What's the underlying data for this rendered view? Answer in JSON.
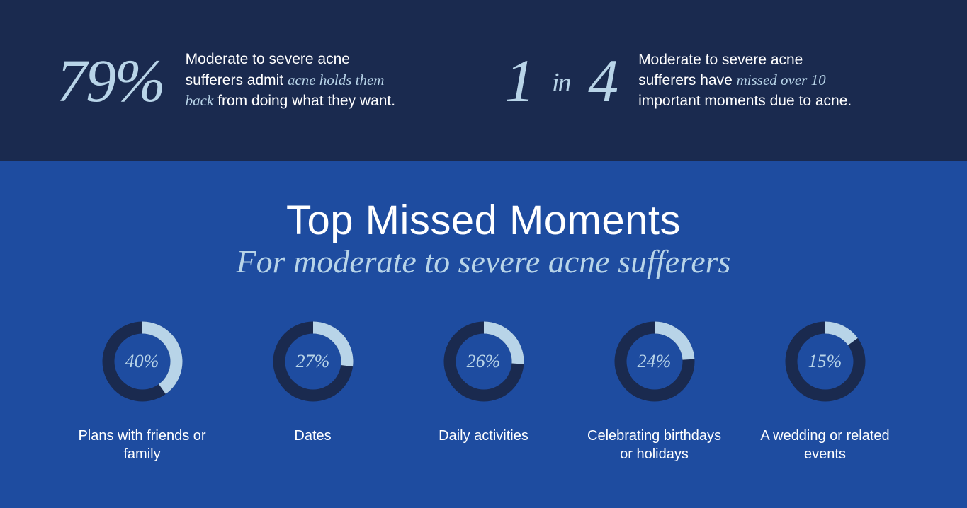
{
  "colors": {
    "top_band_bg": "#1a2a4f",
    "bottom_band_bg": "#1e4ca0",
    "accent_light": "#b8d4e8",
    "donut_track": "#1a2a4f",
    "donut_fill": "#b8d4e8",
    "text_white": "#ffffff"
  },
  "top_stats": [
    {
      "stat_html": "79%",
      "desc_html": "Moderate to severe acne sufferers admit <span class='em'>acne holds them back</span> from doing what they want."
    },
    {
      "stat_html": "1 <span class='in-word'>in</span> 4",
      "desc_html": "Moderate to severe acne sufferers have <span class='em'>missed over 10</span> important moments due to acne."
    }
  ],
  "title": "Top Missed Moments",
  "subtitle": "For moderate to severe acne sufferers",
  "donut_style": {
    "size": 120,
    "stroke_width": 17,
    "radius": 48,
    "track_color": "#1a2a4f",
    "fill_color": "#b8d4e8",
    "pct_fontsize": 26,
    "label_fontsize": 20
  },
  "donuts": [
    {
      "pct": 40,
      "pct_label": "40%",
      "label": "Plans with friends or family"
    },
    {
      "pct": 27,
      "pct_label": "27%",
      "label": "Dates"
    },
    {
      "pct": 26,
      "pct_label": "26%",
      "label": "Daily activities"
    },
    {
      "pct": 24,
      "pct_label": "24%",
      "label": "Celebrating birthdays or holidays"
    },
    {
      "pct": 15,
      "pct_label": "15%",
      "label": "A wedding or related events"
    }
  ]
}
